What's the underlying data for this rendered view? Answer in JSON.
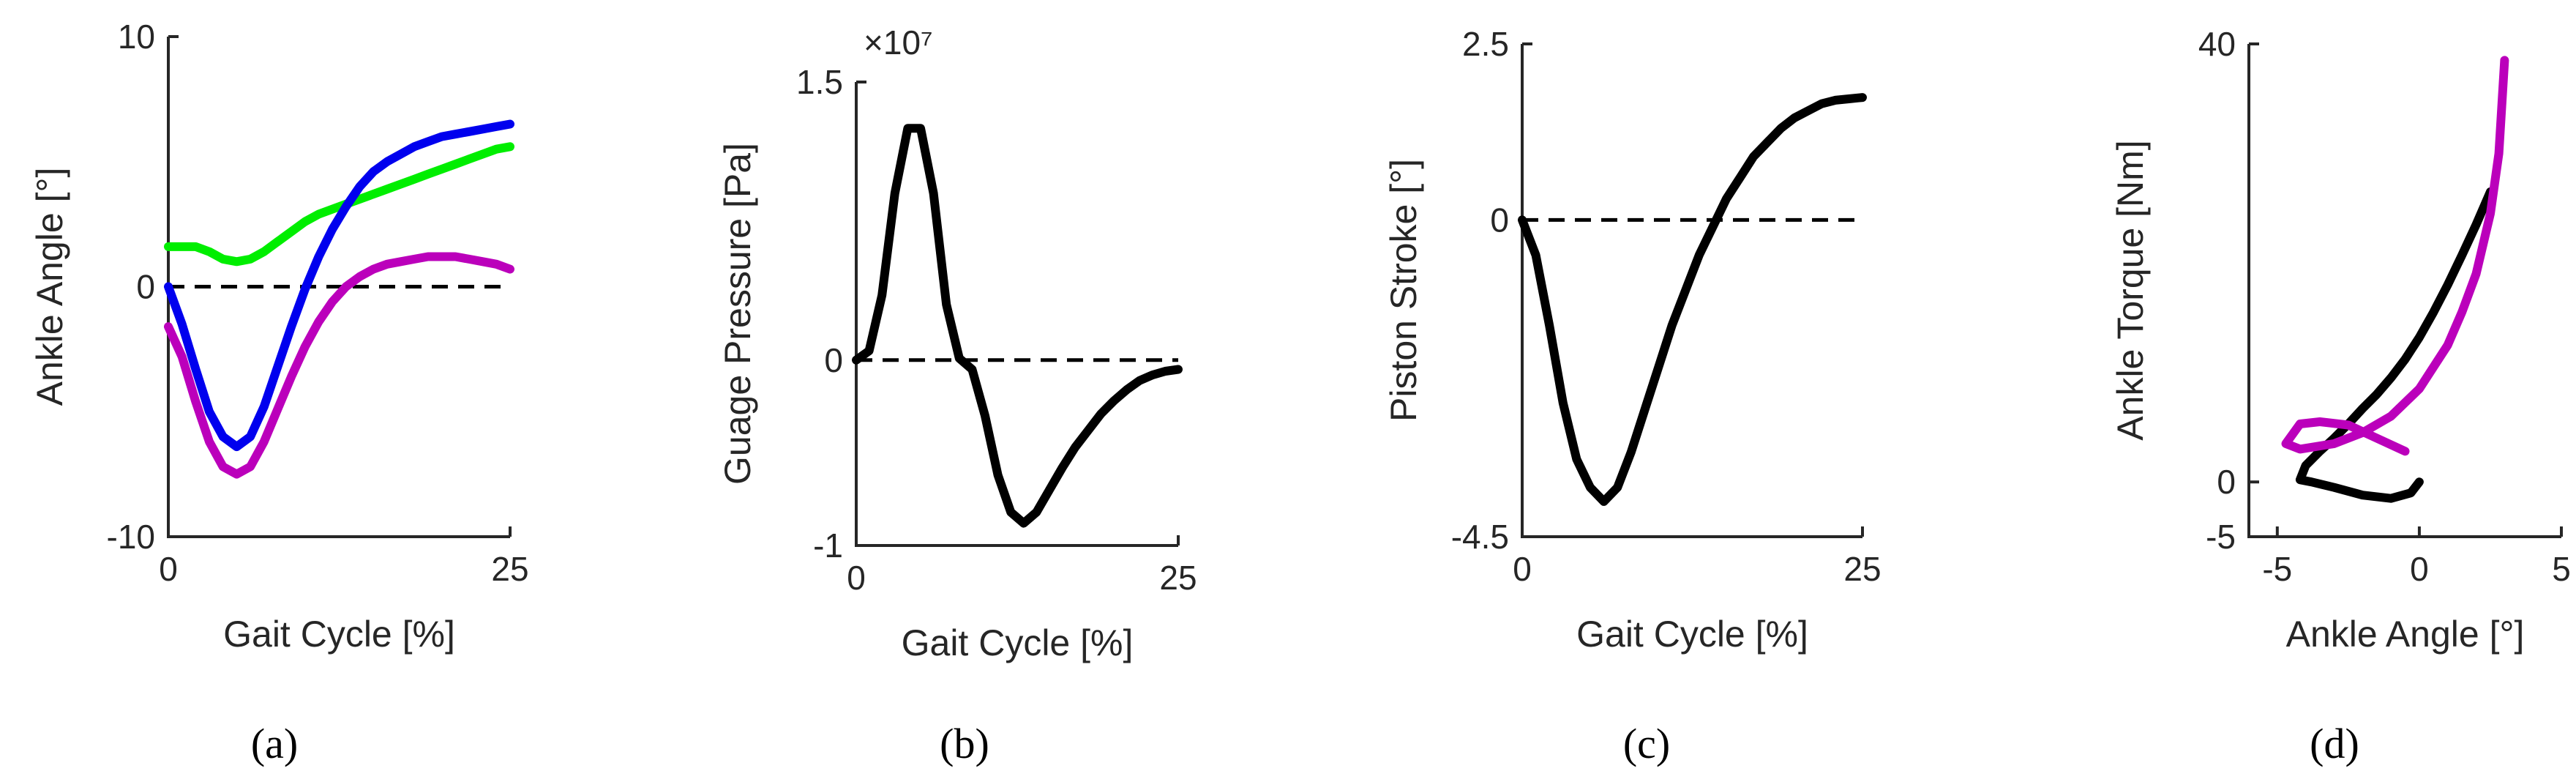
{
  "chart_data": [
    {
      "type": "line",
      "panel": "(a)",
      "xlabel": "Gait Cycle [%]",
      "ylabel": "Ankle Angle [°]",
      "xlim": [
        0,
        25
      ],
      "ylim": [
        -10,
        10
      ],
      "xticks": [
        0,
        25
      ],
      "yticks": [
        -10,
        0,
        10
      ],
      "reference_line": {
        "y": 0,
        "style": "dashed"
      },
      "series": [
        {
          "name": "green",
          "color": "#00ee00",
          "x": [
            0,
            1,
            2,
            3,
            4,
            5,
            6,
            7,
            8,
            9,
            10,
            11,
            12,
            13,
            14,
            15,
            16,
            17,
            18,
            19,
            20,
            21,
            22,
            23,
            24,
            25
          ],
          "y": [
            1.6,
            1.6,
            1.6,
            1.4,
            1.1,
            1.0,
            1.1,
            1.4,
            1.8,
            2.2,
            2.6,
            2.9,
            3.1,
            3.3,
            3.5,
            3.7,
            3.9,
            4.1,
            4.3,
            4.5,
            4.7,
            4.9,
            5.1,
            5.3,
            5.5,
            5.6
          ]
        },
        {
          "name": "blue",
          "color": "#0000ee",
          "x": [
            0,
            1,
            2,
            3,
            4,
            5,
            6,
            7,
            8,
            9,
            10,
            11,
            12,
            13,
            14,
            15,
            16,
            17,
            18,
            19,
            20,
            21,
            22,
            23,
            24,
            25
          ],
          "y": [
            0,
            -1.5,
            -3.3,
            -5.0,
            -6.0,
            -6.4,
            -6.0,
            -4.8,
            -3.2,
            -1.6,
            -0.1,
            1.2,
            2.3,
            3.2,
            4.0,
            4.6,
            5.0,
            5.3,
            5.6,
            5.8,
            6.0,
            6.1,
            6.2,
            6.3,
            6.4,
            6.5
          ]
        },
        {
          "name": "magenta",
          "color": "#bb00bb",
          "x": [
            0,
            1,
            2,
            3,
            4,
            5,
            6,
            7,
            8,
            9,
            10,
            11,
            12,
            13,
            14,
            15,
            16,
            17,
            18,
            19,
            20,
            21,
            22,
            23,
            24,
            25
          ],
          "y": [
            -1.6,
            -2.8,
            -4.6,
            -6.2,
            -7.2,
            -7.5,
            -7.2,
            -6.2,
            -4.9,
            -3.6,
            -2.4,
            -1.4,
            -0.6,
            0.0,
            0.4,
            0.7,
            0.9,
            1.0,
            1.1,
            1.2,
            1.2,
            1.2,
            1.1,
            1.0,
            0.9,
            0.7
          ]
        }
      ]
    },
    {
      "type": "line",
      "panel": "(b)",
      "xlabel": "Gait Cycle [%]",
      "ylabel": "Guage Pressure [Pa]",
      "exponent_label": "×10⁷",
      "xlim": [
        0,
        25
      ],
      "ylim": [
        -1,
        1.5
      ],
      "xticks": [
        0,
        25
      ],
      "yticks": [
        -1,
        0,
        1.5
      ],
      "reference_line": {
        "y": 0,
        "style": "dashed"
      },
      "series": [
        {
          "name": "pressure",
          "color": "#000000",
          "x": [
            0,
            1,
            2,
            3,
            4,
            5,
            6,
            7,
            8,
            9,
            10,
            11,
            12,
            13,
            14,
            15,
            16,
            17,
            18,
            19,
            20,
            21,
            22,
            23,
            24,
            25
          ],
          "y": [
            0,
            0.05,
            0.35,
            0.9,
            1.25,
            1.25,
            0.9,
            0.3,
            0.01,
            -0.05,
            -0.3,
            -0.62,
            -0.82,
            -0.88,
            -0.82,
            -0.7,
            -0.58,
            -0.47,
            -0.38,
            -0.29,
            -0.22,
            -0.16,
            -0.11,
            -0.08,
            -0.06,
            -0.05
          ]
        }
      ]
    },
    {
      "type": "line",
      "panel": "(c)",
      "xlabel": "Gait Cycle [%]",
      "ylabel": "Piston Stroke [°]",
      "xlim": [
        0,
        25
      ],
      "ylim": [
        -4.5,
        2.5
      ],
      "xticks": [
        0,
        25
      ],
      "yticks": [
        -4.5,
        0,
        2.5
      ],
      "reference_line": {
        "y": 0,
        "style": "dashed"
      },
      "series": [
        {
          "name": "stroke",
          "color": "#000000",
          "x": [
            0,
            1,
            2,
            3,
            4,
            5,
            6,
            7,
            8,
            9,
            10,
            11,
            12,
            13,
            14,
            15,
            16,
            17,
            18,
            19,
            20,
            21,
            22,
            23,
            24,
            25
          ],
          "y": [
            0,
            -0.5,
            -1.5,
            -2.6,
            -3.4,
            -3.8,
            -4.0,
            -3.8,
            -3.3,
            -2.7,
            -2.1,
            -1.5,
            -1.0,
            -0.5,
            -0.1,
            0.3,
            0.6,
            0.9,
            1.1,
            1.3,
            1.45,
            1.55,
            1.65,
            1.7,
            1.72,
            1.74
          ]
        }
      ]
    },
    {
      "type": "line",
      "panel": "(d)",
      "xlabel": "Ankle Angle [°]",
      "ylabel": "Ankle Torque [Nm]",
      "xlim": [
        -6,
        5
      ],
      "ylim": [
        -5,
        40
      ],
      "xticks": [
        -5,
        0,
        5
      ],
      "yticks": [
        -5,
        0,
        40
      ],
      "series": [
        {
          "name": "black",
          "color": "#000000",
          "x": [
            0,
            -0.3,
            -1,
            -2,
            -3,
            -3.8,
            -4.2,
            -4.0,
            -3.5,
            -3.0,
            -2.5,
            -2.0,
            -1.5,
            -1.0,
            -0.5,
            0,
            0.5,
            1.0,
            1.5,
            2.0,
            2.5
          ],
          "y": [
            0,
            -1,
            -1.5,
            -1.2,
            -0.5,
            0,
            0.2,
            1.5,
            2.8,
            4.0,
            5.3,
            6.7,
            8.0,
            9.5,
            11.2,
            13.2,
            15.5,
            18.0,
            20.7,
            23.5,
            26.5
          ]
        },
        {
          "name": "magenta",
          "color": "#bb00bb",
          "x": [
            -0.5,
            -1.5,
            -2.5,
            -3.5,
            -4.2,
            -4.7,
            -4.2,
            -3.0,
            -2.0,
            -1.0,
            0,
            1.0,
            1.5,
            2.0,
            2.5,
            2.8,
            3.0
          ],
          "y": [
            2.8,
            4.0,
            5.2,
            5.5,
            5.3,
            3.5,
            3.0,
            3.5,
            4.5,
            6.0,
            8.5,
            12.5,
            15.5,
            19.0,
            24.5,
            30.0,
            38.5
          ]
        }
      ]
    }
  ]
}
